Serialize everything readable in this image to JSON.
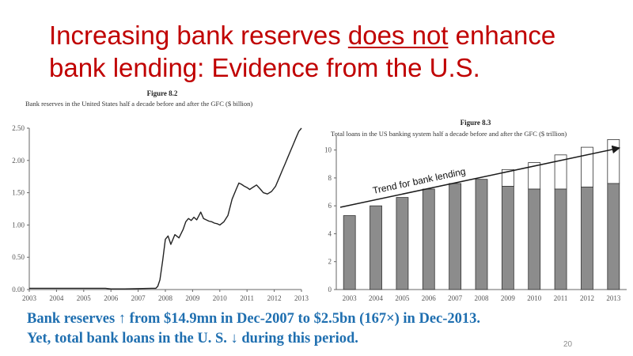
{
  "title": {
    "part1": "Increasing bank reserves ",
    "part2": "does not",
    "part3": " enhance",
    "line2": "bank lending: Evidence from the U.S."
  },
  "footer": {
    "line1": "Bank reserves ↑ from $14.9mn in Dec-2007 to $2.5bn (167×) in Dec-2013.",
    "line2": "Yet, total bank loans in the U. S. ↓ during this period."
  },
  "page_number": "20",
  "colors": {
    "title": "#c00000",
    "footer": "#1f6fb0",
    "bar_filled": "#8c8c8c",
    "bar_outline": "#333333",
    "line": "#222222"
  },
  "chart_data": [
    {
      "type": "line",
      "figure_label": "Figure 8.2",
      "title": "Bank reserves in the United States half a decade before and after the GFC ($ billion)",
      "x_tick_labels": [
        "2003",
        "2004",
        "2005",
        "2006",
        "2007",
        "2008",
        "2009",
        "2010",
        "2011",
        "2012",
        "2013"
      ],
      "y_tick_labels": [
        "0.00",
        "0.50",
        "1.00",
        "1.50",
        "2.00",
        "2.50"
      ],
      "xlim": [
        2003,
        2013
      ],
      "ylim": [
        0,
        2.5
      ],
      "grid": false,
      "series": [
        {
          "x": [
            2003,
            2005.8,
            2006.0,
            2006.5,
            2007.5,
            2007.65,
            2007.72,
            2007.8,
            2007.9,
            2008.0,
            2008.1,
            2008.2,
            2008.35,
            2008.5,
            2008.65,
            2008.75,
            2008.85,
            2008.95,
            2009.05,
            2009.15,
            2009.3,
            2009.4,
            2009.5,
            2009.6,
            2009.7,
            2009.8,
            2009.9,
            2010.0,
            2010.15,
            2010.3,
            2010.45,
            2010.6,
            2010.7,
            2010.8,
            2010.9,
            2011.0,
            2011.1,
            2011.2,
            2011.35,
            2011.5,
            2011.6,
            2011.75,
            2011.9,
            2012.05,
            2012.2,
            2012.3,
            2012.4,
            2012.5,
            2012.6,
            2012.7,
            2012.8,
            2012.9,
            2013.0
          ],
          "y": [
            0.02,
            0.02,
            0.01,
            0.01,
            0.02,
            0.02,
            0.05,
            0.15,
            0.45,
            0.78,
            0.83,
            0.7,
            0.85,
            0.8,
            0.93,
            1.05,
            1.1,
            1.07,
            1.12,
            1.08,
            1.2,
            1.1,
            1.08,
            1.06,
            1.05,
            1.03,
            1.02,
            1.0,
            1.05,
            1.15,
            1.4,
            1.55,
            1.65,
            1.63,
            1.6,
            1.58,
            1.55,
            1.58,
            1.62,
            1.55,
            1.5,
            1.48,
            1.52,
            1.6,
            1.75,
            1.85,
            1.95,
            2.05,
            2.15,
            2.25,
            2.35,
            2.45,
            2.5
          ]
        }
      ]
    },
    {
      "type": "bar",
      "figure_label": "Figure 8.3",
      "title": "Total loans in the US banking system half a decade before and after the GFC ($ trillion)",
      "categories": [
        "2003",
        "2004",
        "2005",
        "2006",
        "2007",
        "2008",
        "2009",
        "2010",
        "2011",
        "2012",
        "2013"
      ],
      "y_tick_labels": [
        "0",
        "2",
        "4",
        "6",
        "8",
        "10"
      ],
      "ylim": [
        0,
        11
      ],
      "grid": false,
      "series": [
        {
          "values": [
            5.3,
            6.0,
            6.6,
            7.2,
            7.6,
            7.9,
            7.4,
            7.2,
            7.2,
            7.35,
            7.6
          ]
        },
        {
          "values": [
            5.3,
            6.0,
            6.6,
            7.2,
            7.6,
            7.9,
            8.6,
            9.1,
            9.65,
            10.2,
            10.75
          ]
        }
      ],
      "annotation": "Trend for bank lending"
    }
  ]
}
